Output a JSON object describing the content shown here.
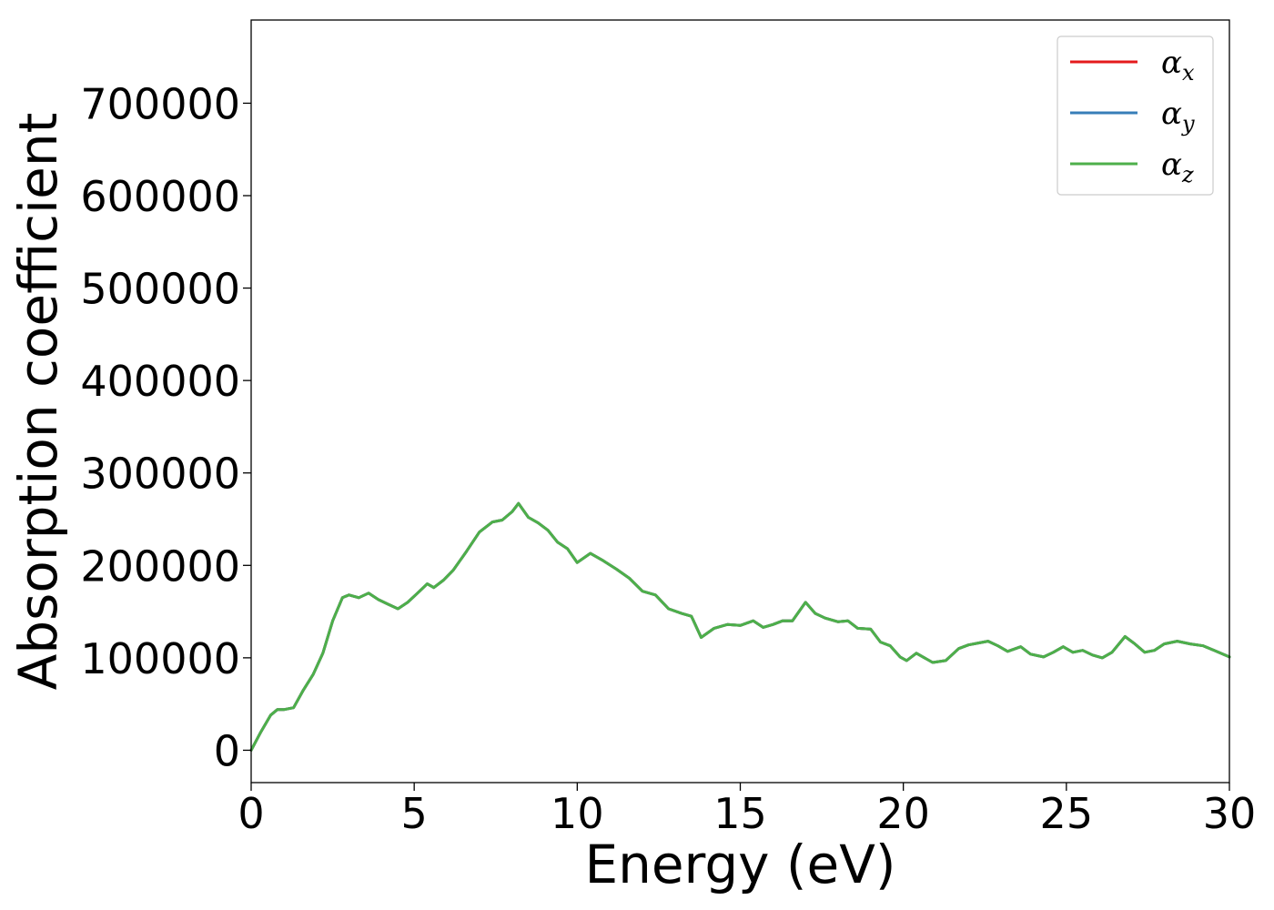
{
  "chart_data": {
    "type": "line",
    "xlabel": "Energy (eV)",
    "ylabel": "Absorption coefficient",
    "xlim": [
      0,
      30
    ],
    "ylim": [
      -35000,
      790000
    ],
    "xticks": [
      0,
      5,
      10,
      15,
      20,
      25,
      30
    ],
    "yticks": [
      0,
      100000,
      200000,
      300000,
      400000,
      500000,
      600000,
      700000
    ],
    "grid": false,
    "legend_position": "top-right",
    "series": [
      {
        "name": "α_x",
        "legend_symbol": "α",
        "legend_subscript": "x",
        "color": "#e41a1c",
        "x": [
          0,
          0.3,
          0.6,
          0.8,
          1.0,
          1.3,
          1.6,
          1.9,
          2.2,
          2.5,
          2.8,
          3.0,
          3.3,
          3.6,
          3.9,
          4.2,
          4.5,
          4.8,
          5.1,
          5.4,
          5.6,
          5.9,
          6.2,
          6.6,
          7.0,
          7.4,
          7.7,
          8.0,
          8.2,
          8.5,
          8.8,
          9.1,
          9.4,
          9.7,
          10.0,
          10.4,
          10.8,
          11.2,
          11.6,
          12.0,
          12.4,
          12.8,
          13.2,
          13.5,
          13.8,
          14.2,
          14.6,
          15.0,
          15.4,
          15.7,
          16.0,
          16.3,
          16.6,
          17.0,
          17.3,
          17.6,
          18.0,
          18.3,
          18.6,
          19.0,
          19.3,
          19.6,
          19.9,
          20.1,
          20.4,
          20.6,
          20.9,
          21.3,
          21.7,
          22.0,
          22.3,
          22.6,
          22.9,
          23.2,
          23.6,
          23.9,
          24.3,
          24.6,
          24.9,
          25.2,
          25.5,
          25.8,
          26.1,
          26.4,
          26.8,
          27.1,
          27.4,
          27.7,
          28.0,
          28.4,
          28.8,
          29.2,
          29.6,
          30.0
        ],
        "y": [
          0,
          20000,
          38000,
          44000,
          44000,
          46000,
          65000,
          82000,
          105000,
          140000,
          165000,
          168000,
          165000,
          170000,
          163000,
          158000,
          153000,
          160000,
          170000,
          180000,
          176000,
          184000,
          195000,
          215000,
          236000,
          247000,
          249000,
          258000,
          267000,
          252000,
          246000,
          238000,
          225000,
          218000,
          203000,
          213000,
          205000,
          196000,
          186000,
          172000,
          168000,
          153000,
          148000,
          145000,
          122000,
          132000,
          136000,
          135000,
          140000,
          133000,
          136000,
          140000,
          140000,
          160000,
          148000,
          143000,
          139000,
          140000,
          132000,
          131000,
          117000,
          113000,
          101000,
          97000,
          105000,
          101000,
          95000,
          97000,
          110000,
          114000,
          116000,
          118000,
          113000,
          107000,
          112000,
          104000,
          101000,
          106000,
          112000,
          106000,
          108000,
          103000,
          100000,
          106000,
          123000,
          115000,
          106000,
          108000,
          115000,
          118000,
          115000,
          113000,
          107000,
          101000
        ]
      },
      {
        "name": "α_y",
        "legend_symbol": "α",
        "legend_subscript": "y",
        "color": "#377eb8",
        "x": [
          0,
          0.3,
          0.6,
          0.8,
          1.0,
          1.3,
          1.6,
          1.9,
          2.2,
          2.5,
          2.8,
          3.0,
          3.3,
          3.6,
          3.9,
          4.2,
          4.5,
          4.8,
          5.1,
          5.4,
          5.6,
          5.9,
          6.2,
          6.6,
          7.0,
          7.4,
          7.7,
          8.0,
          8.2,
          8.5,
          8.8,
          9.1,
          9.4,
          9.7,
          10.0,
          10.4,
          10.8,
          11.2,
          11.6,
          12.0,
          12.4,
          12.8,
          13.2,
          13.5,
          13.8,
          14.2,
          14.6,
          15.0,
          15.4,
          15.7,
          16.0,
          16.3,
          16.6,
          17.0,
          17.3,
          17.6,
          18.0,
          18.3,
          18.6,
          19.0,
          19.3,
          19.6,
          19.9,
          20.1,
          20.4,
          20.6,
          20.9,
          21.3,
          21.7,
          22.0,
          22.3,
          22.6,
          22.9,
          23.2,
          23.6,
          23.9,
          24.3,
          24.6,
          24.9,
          25.2,
          25.5,
          25.8,
          26.1,
          26.4,
          26.8,
          27.1,
          27.4,
          27.7,
          28.0,
          28.4,
          28.8,
          29.2,
          29.6,
          30.0
        ],
        "y": [
          0,
          20000,
          38000,
          44000,
          44000,
          46000,
          65000,
          82000,
          105000,
          140000,
          165000,
          168000,
          165000,
          170000,
          163000,
          158000,
          153000,
          160000,
          170000,
          180000,
          176000,
          184000,
          195000,
          215000,
          236000,
          247000,
          249000,
          258000,
          267000,
          252000,
          246000,
          238000,
          225000,
          218000,
          203000,
          213000,
          205000,
          196000,
          186000,
          172000,
          168000,
          153000,
          148000,
          145000,
          122000,
          132000,
          136000,
          135000,
          140000,
          133000,
          136000,
          140000,
          140000,
          160000,
          148000,
          143000,
          139000,
          140000,
          132000,
          131000,
          117000,
          113000,
          101000,
          97000,
          105000,
          101000,
          95000,
          97000,
          110000,
          114000,
          116000,
          118000,
          113000,
          107000,
          112000,
          104000,
          101000,
          106000,
          112000,
          106000,
          108000,
          103000,
          100000,
          106000,
          123000,
          115000,
          106000,
          108000,
          115000,
          118000,
          115000,
          113000,
          107000,
          101000
        ]
      },
      {
        "name": "α_z",
        "legend_symbol": "α",
        "legend_subscript": "z",
        "color": "#4daf4a",
        "x": [
          0,
          0.3,
          0.6,
          0.8,
          1.0,
          1.3,
          1.6,
          1.9,
          2.2,
          2.5,
          2.8,
          3.0,
          3.3,
          3.6,
          3.9,
          4.2,
          4.5,
          4.8,
          5.1,
          5.4,
          5.6,
          5.9,
          6.2,
          6.6,
          7.0,
          7.4,
          7.7,
          8.0,
          8.2,
          8.5,
          8.8,
          9.1,
          9.4,
          9.7,
          10.0,
          10.4,
          10.8,
          11.2,
          11.6,
          12.0,
          12.4,
          12.8,
          13.2,
          13.5,
          13.8,
          14.2,
          14.6,
          15.0,
          15.4,
          15.7,
          16.0,
          16.3,
          16.6,
          17.0,
          17.3,
          17.6,
          18.0,
          18.3,
          18.6,
          19.0,
          19.3,
          19.6,
          19.9,
          20.1,
          20.4,
          20.6,
          20.9,
          21.3,
          21.7,
          22.0,
          22.3,
          22.6,
          22.9,
          23.2,
          23.6,
          23.9,
          24.3,
          24.6,
          24.9,
          25.2,
          25.5,
          25.8,
          26.1,
          26.4,
          26.8,
          27.1,
          27.4,
          27.7,
          28.0,
          28.4,
          28.8,
          29.2,
          29.6,
          30.0
        ],
        "y": [
          0,
          20000,
          38000,
          44000,
          44000,
          46000,
          65000,
          82000,
          105000,
          140000,
          165000,
          168000,
          165000,
          170000,
          163000,
          158000,
          153000,
          160000,
          170000,
          180000,
          176000,
          184000,
          195000,
          215000,
          236000,
          247000,
          249000,
          258000,
          267000,
          252000,
          246000,
          238000,
          225000,
          218000,
          203000,
          213000,
          205000,
          196000,
          186000,
          172000,
          168000,
          153000,
          148000,
          145000,
          122000,
          132000,
          136000,
          135000,
          140000,
          133000,
          136000,
          140000,
          140000,
          160000,
          148000,
          143000,
          139000,
          140000,
          132000,
          131000,
          117000,
          113000,
          101000,
          97000,
          105000,
          101000,
          95000,
          97000,
          110000,
          114000,
          116000,
          118000,
          113000,
          107000,
          112000,
          104000,
          101000,
          106000,
          112000,
          106000,
          108000,
          103000,
          100000,
          106000,
          123000,
          115000,
          106000,
          108000,
          115000,
          118000,
          115000,
          113000,
          107000,
          101000
        ]
      }
    ]
  }
}
